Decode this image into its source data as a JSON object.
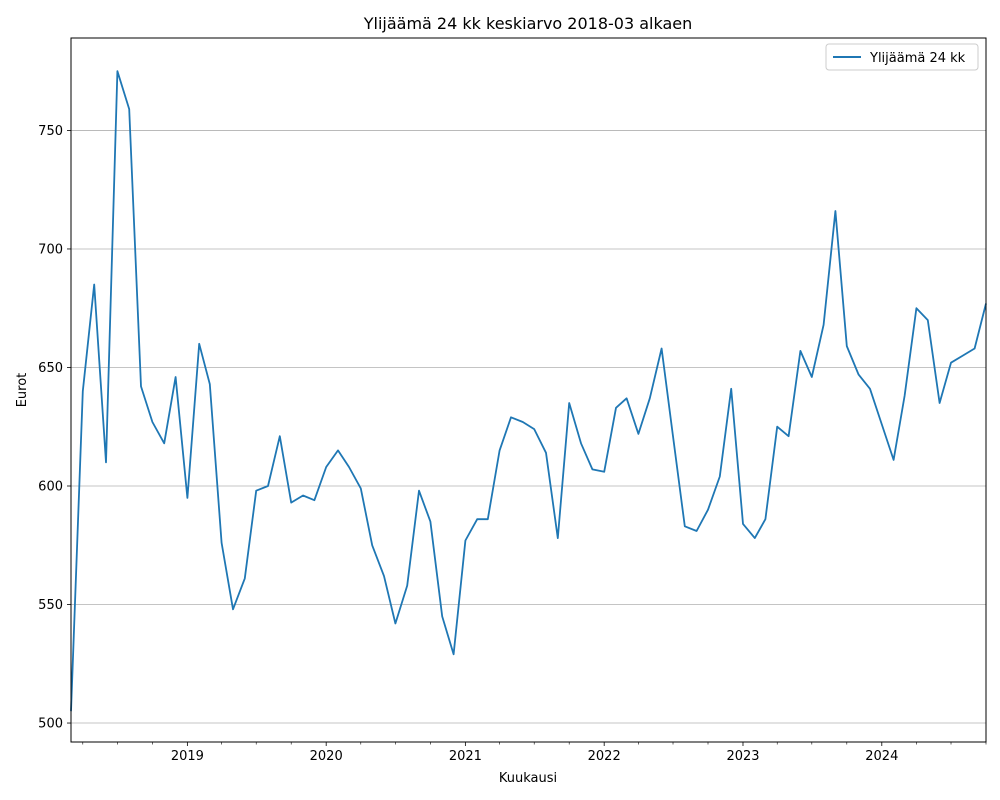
{
  "chart_data": {
    "type": "line",
    "title": "Ylijäämä 24 kk keskiarvo 2018-03 alkaen",
    "xlabel": "Kuukausi",
    "ylabel": "Eurot",
    "xlim": [
      "2018-03-01",
      "2024-10-01"
    ],
    "ylim": [
      492,
      789
    ],
    "yticks": [
      500,
      550,
      600,
      650,
      700,
      750
    ],
    "xticks": [
      {
        "date": "2019-01-01",
        "label": "2019"
      },
      {
        "date": "2020-01-01",
        "label": "2020"
      },
      {
        "date": "2021-01-01",
        "label": "2021"
      },
      {
        "date": "2022-01-01",
        "label": "2022"
      },
      {
        "date": "2023-01-01",
        "label": "2023"
      },
      {
        "date": "2024-01-01",
        "label": "2024"
      }
    ],
    "grid": "y",
    "legend": "top-right",
    "series": [
      {
        "name": "Ylijäämä 24 kk",
        "color": "#1f77b4",
        "x": [
          "2018-03",
          "2018-04",
          "2018-05",
          "2018-06",
          "2018-07",
          "2018-08",
          "2018-09",
          "2018-10",
          "2018-11",
          "2018-12",
          "2019-01",
          "2019-02",
          "2019-03",
          "2019-04",
          "2019-05",
          "2019-06",
          "2019-07",
          "2019-08",
          "2019-09",
          "2019-10",
          "2019-11",
          "2019-12",
          "2020-01",
          "2020-02",
          "2020-03",
          "2020-04",
          "2020-05",
          "2020-06",
          "2020-07",
          "2020-08",
          "2020-09",
          "2020-10",
          "2020-11",
          "2020-12",
          "2021-01",
          "2021-02",
          "2021-03",
          "2021-04",
          "2021-05",
          "2021-06",
          "2021-07",
          "2021-08",
          "2021-09",
          "2021-10",
          "2021-11",
          "2021-12",
          "2022-01",
          "2022-02",
          "2022-03",
          "2022-04",
          "2022-05",
          "2022-06",
          "2022-07",
          "2022-08",
          "2022-09",
          "2022-10",
          "2022-11",
          "2022-12",
          "2023-01",
          "2023-02",
          "2023-03",
          "2023-04",
          "2023-05",
          "2023-06",
          "2023-07",
          "2023-08",
          "2023-09",
          "2023-10",
          "2023-11",
          "2023-12",
          "2024-01",
          "2024-02",
          "2024-03",
          "2024-04",
          "2024-05",
          "2024-06",
          "2024-07",
          "2024-08",
          "2024-09",
          "2024-10"
        ],
        "y": [
          505,
          640,
          685,
          610,
          775,
          759,
          642,
          627,
          618,
          646,
          595,
          660,
          643,
          576,
          548,
          561,
          598,
          600,
          621,
          593,
          596,
          594,
          608,
          615,
          608,
          599,
          575,
          562,
          542,
          558,
          598,
          585,
          545,
          529,
          577,
          586,
          586,
          615,
          629,
          627,
          624,
          614,
          578,
          635,
          618,
          607,
          606,
          633,
          637,
          622,
          637,
          658,
          621,
          583,
          581,
          590,
          604,
          641,
          584,
          578,
          586,
          625,
          621,
          657,
          646,
          668,
          716,
          659,
          647,
          641,
          626,
          611,
          638,
          675,
          670,
          635,
          652,
          655,
          658,
          677
        ]
      }
    ]
  }
}
